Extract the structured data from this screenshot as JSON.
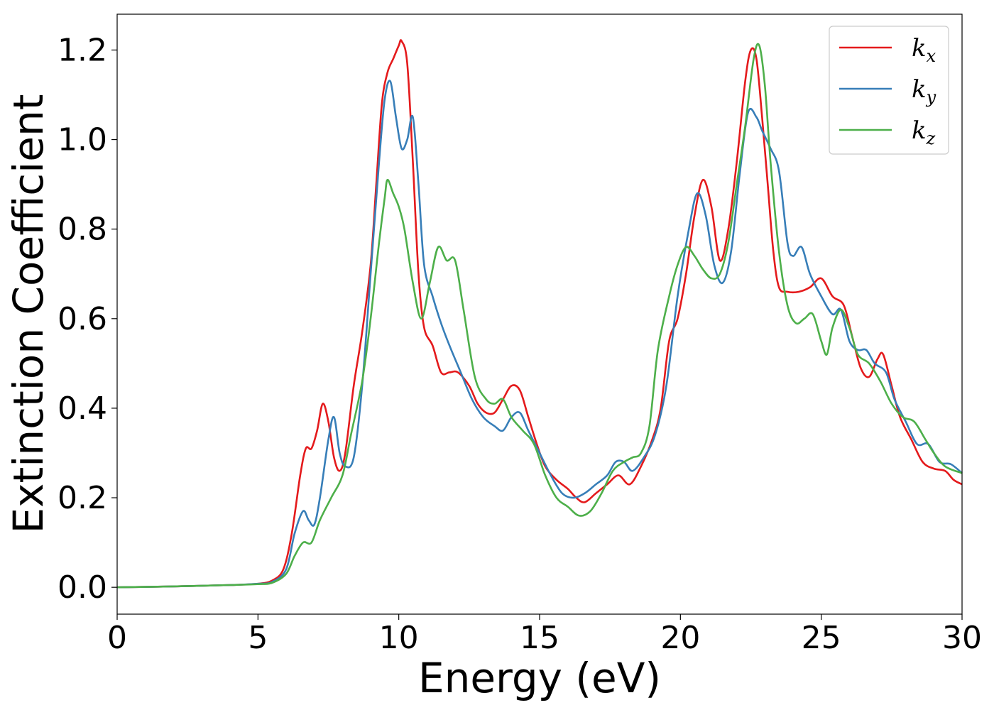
{
  "chart_data": {
    "type": "line",
    "title": "",
    "xlabel": "Energy (eV)",
    "ylabel": "Extinction Coefficient",
    "xlim": [
      0,
      30
    ],
    "ylim": [
      -0.06,
      1.28
    ],
    "x_ticks": [
      0,
      5,
      10,
      15,
      20,
      25,
      30
    ],
    "x_tick_labels": [
      "0",
      "5",
      "10",
      "15",
      "20",
      "25",
      "30"
    ],
    "y_ticks": [
      0.0,
      0.2,
      0.4,
      0.6,
      0.8,
      1.0,
      1.2
    ],
    "y_tick_labels": [
      "0.0",
      "0.2",
      "0.4",
      "0.6",
      "0.8",
      "1.0",
      "1.2"
    ],
    "grid": false,
    "legend_position": "top-right",
    "series": [
      {
        "name": "k_x",
        "label_base": "k",
        "label_sub": "x",
        "color": "#e41a1c",
        "points": [
          [
            0,
            0.0
          ],
          [
            2,
            0.002
          ],
          [
            4,
            0.005
          ],
          [
            5,
            0.008
          ],
          [
            5.5,
            0.015
          ],
          [
            5.9,
            0.04
          ],
          [
            6.2,
            0.12
          ],
          [
            6.5,
            0.25
          ],
          [
            6.7,
            0.31
          ],
          [
            6.9,
            0.31
          ],
          [
            7.1,
            0.35
          ],
          [
            7.3,
            0.41
          ],
          [
            7.5,
            0.37
          ],
          [
            7.7,
            0.29
          ],
          [
            7.9,
            0.26
          ],
          [
            8.1,
            0.3
          ],
          [
            8.4,
            0.45
          ],
          [
            8.7,
            0.57
          ],
          [
            9.0,
            0.72
          ],
          [
            9.2,
            0.9
          ],
          [
            9.4,
            1.08
          ],
          [
            9.6,
            1.15
          ],
          [
            9.8,
            1.18
          ],
          [
            10.0,
            1.21
          ],
          [
            10.1,
            1.22
          ],
          [
            10.3,
            1.17
          ],
          [
            10.5,
            0.95
          ],
          [
            10.7,
            0.7
          ],
          [
            10.9,
            0.58
          ],
          [
            11.2,
            0.54
          ],
          [
            11.5,
            0.48
          ],
          [
            11.8,
            0.48
          ],
          [
            12.1,
            0.48
          ],
          [
            12.5,
            0.45
          ],
          [
            12.8,
            0.41
          ],
          [
            13.1,
            0.39
          ],
          [
            13.4,
            0.39
          ],
          [
            13.7,
            0.42
          ],
          [
            14.0,
            0.45
          ],
          [
            14.3,
            0.44
          ],
          [
            14.6,
            0.38
          ],
          [
            14.9,
            0.32
          ],
          [
            15.2,
            0.27
          ],
          [
            15.6,
            0.24
          ],
          [
            16.0,
            0.22
          ],
          [
            16.3,
            0.2
          ],
          [
            16.6,
            0.19
          ],
          [
            17.0,
            0.21
          ],
          [
            17.4,
            0.23
          ],
          [
            17.8,
            0.25
          ],
          [
            18.2,
            0.23
          ],
          [
            18.6,
            0.27
          ],
          [
            19.0,
            0.33
          ],
          [
            19.3,
            0.4
          ],
          [
            19.6,
            0.55
          ],
          [
            19.9,
            0.6
          ],
          [
            20.2,
            0.7
          ],
          [
            20.5,
            0.83
          ],
          [
            20.8,
            0.91
          ],
          [
            21.1,
            0.85
          ],
          [
            21.4,
            0.73
          ],
          [
            21.7,
            0.8
          ],
          [
            22.0,
            0.95
          ],
          [
            22.3,
            1.13
          ],
          [
            22.5,
            1.2
          ],
          [
            22.7,
            1.18
          ],
          [
            22.9,
            1.05
          ],
          [
            23.1,
            0.9
          ],
          [
            23.3,
            0.75
          ],
          [
            23.5,
            0.67
          ],
          [
            23.8,
            0.66
          ],
          [
            24.2,
            0.66
          ],
          [
            24.6,
            0.67
          ],
          [
            25.0,
            0.69
          ],
          [
            25.4,
            0.65
          ],
          [
            25.8,
            0.63
          ],
          [
            26.1,
            0.56
          ],
          [
            26.4,
            0.49
          ],
          [
            26.7,
            0.47
          ],
          [
            27.0,
            0.51
          ],
          [
            27.2,
            0.52
          ],
          [
            27.5,
            0.45
          ],
          [
            27.8,
            0.38
          ],
          [
            28.2,
            0.33
          ],
          [
            28.6,
            0.28
          ],
          [
            29.0,
            0.265
          ],
          [
            29.4,
            0.26
          ],
          [
            29.7,
            0.24
          ],
          [
            30.0,
            0.23
          ]
        ]
      },
      {
        "name": "k_y",
        "label_base": "k",
        "label_sub": "y",
        "color": "#377eb8",
        "points": [
          [
            0,
            0.0
          ],
          [
            2,
            0.002
          ],
          [
            4,
            0.005
          ],
          [
            5,
            0.008
          ],
          [
            5.5,
            0.012
          ],
          [
            6.0,
            0.04
          ],
          [
            6.3,
            0.12
          ],
          [
            6.6,
            0.17
          ],
          [
            6.8,
            0.15
          ],
          [
            7.0,
            0.14
          ],
          [
            7.2,
            0.2
          ],
          [
            7.5,
            0.33
          ],
          [
            7.7,
            0.38
          ],
          [
            7.9,
            0.3
          ],
          [
            8.1,
            0.27
          ],
          [
            8.4,
            0.29
          ],
          [
            8.7,
            0.45
          ],
          [
            9.0,
            0.7
          ],
          [
            9.3,
            0.95
          ],
          [
            9.5,
            1.09
          ],
          [
            9.7,
            1.13
          ],
          [
            9.9,
            1.05
          ],
          [
            10.1,
            0.98
          ],
          [
            10.3,
            1.0
          ],
          [
            10.5,
            1.05
          ],
          [
            10.7,
            0.9
          ],
          [
            10.9,
            0.72
          ],
          [
            11.2,
            0.65
          ],
          [
            11.5,
            0.59
          ],
          [
            11.8,
            0.54
          ],
          [
            12.2,
            0.48
          ],
          [
            12.6,
            0.42
          ],
          [
            13.0,
            0.38
          ],
          [
            13.4,
            0.36
          ],
          [
            13.7,
            0.35
          ],
          [
            14.0,
            0.38
          ],
          [
            14.3,
            0.39
          ],
          [
            14.6,
            0.35
          ],
          [
            15.0,
            0.3
          ],
          [
            15.4,
            0.25
          ],
          [
            15.8,
            0.21
          ],
          [
            16.2,
            0.2
          ],
          [
            16.6,
            0.21
          ],
          [
            17.0,
            0.23
          ],
          [
            17.4,
            0.25
          ],
          [
            17.7,
            0.28
          ],
          [
            18.0,
            0.28
          ],
          [
            18.3,
            0.26
          ],
          [
            18.7,
            0.29
          ],
          [
            19.1,
            0.34
          ],
          [
            19.5,
            0.45
          ],
          [
            19.9,
            0.65
          ],
          [
            20.3,
            0.8
          ],
          [
            20.6,
            0.88
          ],
          [
            20.9,
            0.83
          ],
          [
            21.2,
            0.72
          ],
          [
            21.5,
            0.68
          ],
          [
            21.8,
            0.75
          ],
          [
            22.1,
            0.92
          ],
          [
            22.4,
            1.06
          ],
          [
            22.7,
            1.05
          ],
          [
            22.9,
            1.02
          ],
          [
            23.2,
            0.98
          ],
          [
            23.5,
            0.93
          ],
          [
            23.8,
            0.77
          ],
          [
            24.0,
            0.74
          ],
          [
            24.3,
            0.76
          ],
          [
            24.6,
            0.7
          ],
          [
            25.0,
            0.65
          ],
          [
            25.4,
            0.61
          ],
          [
            25.7,
            0.62
          ],
          [
            26.0,
            0.55
          ],
          [
            26.3,
            0.53
          ],
          [
            26.6,
            0.53
          ],
          [
            26.9,
            0.5
          ],
          [
            27.3,
            0.48
          ],
          [
            27.6,
            0.42
          ],
          [
            28.0,
            0.37
          ],
          [
            28.4,
            0.32
          ],
          [
            28.8,
            0.32
          ],
          [
            29.2,
            0.28
          ],
          [
            29.6,
            0.275
          ],
          [
            30.0,
            0.255
          ]
        ]
      },
      {
        "name": "k_z",
        "label_base": "k",
        "label_sub": "z",
        "color": "#4daf4a",
        "points": [
          [
            0,
            0.0
          ],
          [
            2,
            0.002
          ],
          [
            4,
            0.005
          ],
          [
            5,
            0.007
          ],
          [
            5.5,
            0.01
          ],
          [
            6.0,
            0.03
          ],
          [
            6.3,
            0.07
          ],
          [
            6.6,
            0.1
          ],
          [
            6.9,
            0.1
          ],
          [
            7.2,
            0.15
          ],
          [
            7.6,
            0.2
          ],
          [
            8.0,
            0.25
          ],
          [
            8.3,
            0.34
          ],
          [
            8.7,
            0.46
          ],
          [
            9.0,
            0.6
          ],
          [
            9.3,
            0.77
          ],
          [
            9.5,
            0.87
          ],
          [
            9.6,
            0.91
          ],
          [
            9.8,
            0.88
          ],
          [
            10.0,
            0.85
          ],
          [
            10.2,
            0.8
          ],
          [
            10.5,
            0.68
          ],
          [
            10.8,
            0.6
          ],
          [
            11.1,
            0.68
          ],
          [
            11.4,
            0.76
          ],
          [
            11.7,
            0.73
          ],
          [
            12.0,
            0.73
          ],
          [
            12.3,
            0.62
          ],
          [
            12.7,
            0.47
          ],
          [
            13.1,
            0.42
          ],
          [
            13.4,
            0.41
          ],
          [
            13.7,
            0.42
          ],
          [
            14.0,
            0.38
          ],
          [
            14.4,
            0.35
          ],
          [
            14.8,
            0.32
          ],
          [
            15.2,
            0.25
          ],
          [
            15.6,
            0.2
          ],
          [
            16.0,
            0.18
          ],
          [
            16.4,
            0.16
          ],
          [
            16.8,
            0.17
          ],
          [
            17.2,
            0.21
          ],
          [
            17.6,
            0.26
          ],
          [
            18.0,
            0.28
          ],
          [
            18.3,
            0.29
          ],
          [
            18.6,
            0.3
          ],
          [
            18.9,
            0.36
          ],
          [
            19.2,
            0.53
          ],
          [
            19.6,
            0.65
          ],
          [
            19.9,
            0.72
          ],
          [
            20.2,
            0.76
          ],
          [
            20.5,
            0.74
          ],
          [
            20.8,
            0.71
          ],
          [
            21.1,
            0.69
          ],
          [
            21.4,
            0.7
          ],
          [
            21.7,
            0.77
          ],
          [
            22.0,
            0.9
          ],
          [
            22.3,
            1.03
          ],
          [
            22.6,
            1.18
          ],
          [
            22.8,
            1.21
          ],
          [
            23.0,
            1.12
          ],
          [
            23.2,
            0.95
          ],
          [
            23.5,
            0.75
          ],
          [
            23.8,
            0.63
          ],
          [
            24.1,
            0.59
          ],
          [
            24.4,
            0.6
          ],
          [
            24.7,
            0.61
          ],
          [
            25.0,
            0.55
          ],
          [
            25.2,
            0.52
          ],
          [
            25.4,
            0.58
          ],
          [
            25.7,
            0.62
          ],
          [
            26.0,
            0.58
          ],
          [
            26.3,
            0.52
          ],
          [
            26.7,
            0.5
          ],
          [
            27.1,
            0.46
          ],
          [
            27.5,
            0.41
          ],
          [
            27.9,
            0.38
          ],
          [
            28.3,
            0.37
          ],
          [
            28.7,
            0.33
          ],
          [
            29.0,
            0.3
          ],
          [
            29.4,
            0.27
          ],
          [
            30.0,
            0.255
          ]
        ]
      }
    ]
  }
}
